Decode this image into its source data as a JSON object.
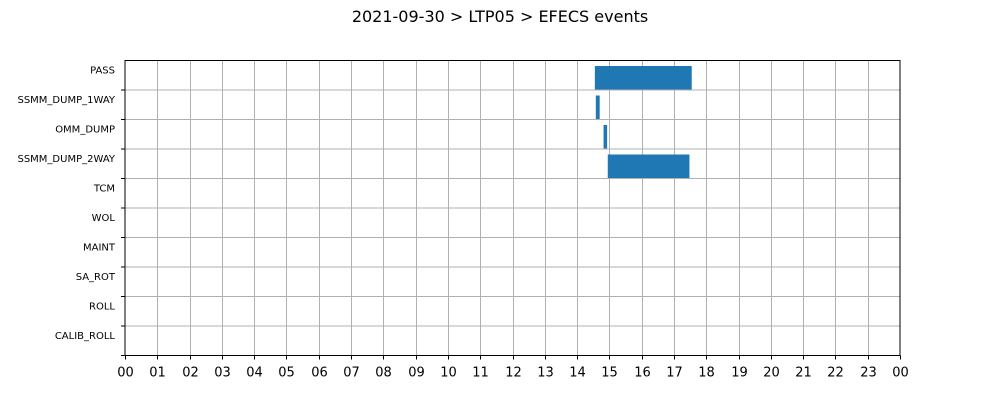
{
  "chart_data": {
    "type": "bar",
    "orientation": "horizontal-timeline",
    "title": "2021-09-30 > LTP05 > EFECS events",
    "xlabel": "",
    "ylabel": "",
    "categories": [
      "PASS",
      "SSMM_DUMP_1WAY",
      "OMM_DUMP",
      "SSMM_DUMP_2WAY",
      "TCM",
      "WOL",
      "MAINT",
      "SA_ROT",
      "ROLL",
      "CALIB_ROLL"
    ],
    "x_ticks": [
      "00",
      "01",
      "02",
      "03",
      "04",
      "05",
      "06",
      "07",
      "08",
      "09",
      "10",
      "11",
      "12",
      "13",
      "14",
      "15",
      "16",
      "17",
      "18",
      "19",
      "20",
      "21",
      "22",
      "23",
      "00"
    ],
    "xlim": [
      0,
      24
    ],
    "x_unit": "hour of day",
    "grid": true,
    "bar_color": "#1f77b4",
    "events": [
      {
        "category": "PASS",
        "start": 14.55,
        "end": 17.55
      },
      {
        "category": "SSMM_DUMP_1WAY",
        "start": 14.58,
        "end": 14.7
      },
      {
        "category": "OMM_DUMP",
        "start": 14.82,
        "end": 14.93
      },
      {
        "category": "SSMM_DUMP_2WAY",
        "start": 14.95,
        "end": 17.48
      }
    ]
  }
}
